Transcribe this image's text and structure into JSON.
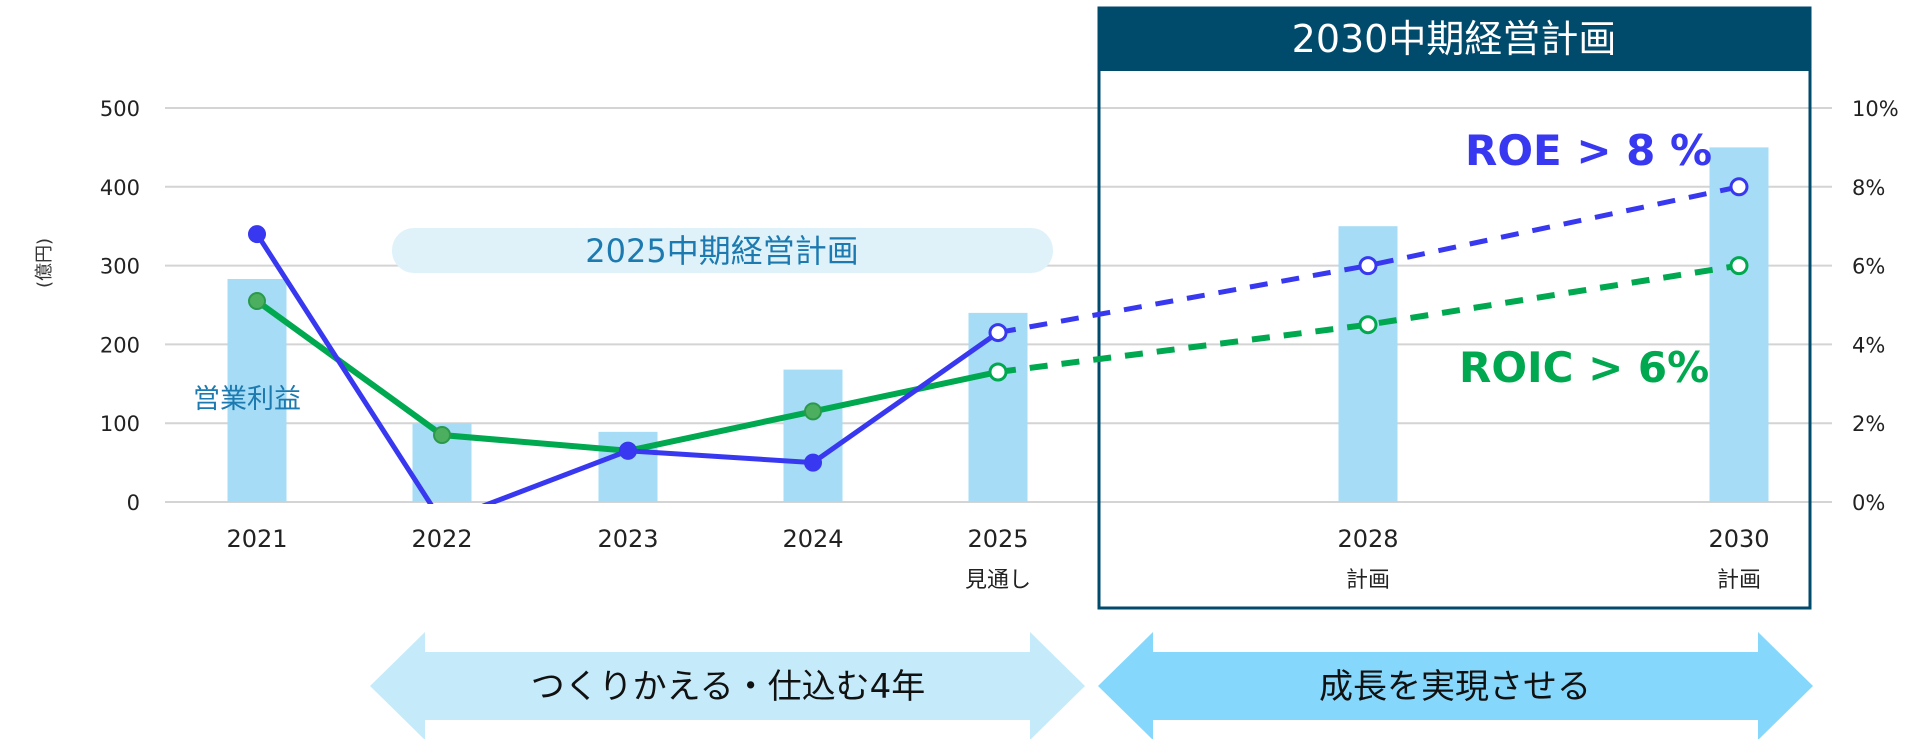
{
  "chart_data": {
    "type": "bar+line",
    "categories": [
      "2021",
      "2022",
      "2023",
      "2024",
      "2025",
      "2028",
      "2030"
    ],
    "category_sublabels": [
      "",
      "",
      "",
      "",
      "見通し",
      "計画",
      "計画"
    ],
    "bar_series": {
      "name": "営業利益",
      "values": [
        283,
        100,
        89,
        168,
        240,
        350,
        450
      ]
    },
    "line_series": [
      {
        "name": "ROE",
        "values": [
          6.8,
          -0.5,
          1.3,
          1.0,
          4.3,
          6.0,
          8.0
        ],
        "color": "#3838f0",
        "projected_from_index": 4
      },
      {
        "name": "ROIC",
        "values": [
          5.1,
          1.7,
          1.3,
          2.3,
          3.3,
          4.5,
          6.0
        ],
        "color": "#00a84f",
        "projected_from_index": 4
      }
    ],
    "y_left": {
      "label": "(億円)",
      "range": [
        0,
        500
      ],
      "ticks": [
        "0",
        "100",
        "200",
        "300",
        "400",
        "500"
      ]
    },
    "y_right": {
      "range": [
        0,
        10
      ],
      "ticks": [
        "0%",
        "2%",
        "4%",
        "6%",
        "8%",
        "10%"
      ]
    },
    "grid": true,
    "bar_color": "#a6dcf5"
  },
  "annotations": {
    "bar_label": "営業利益",
    "plan_2025": "2025中期経営計画",
    "plan_2030": "2030中期経営計画",
    "roe_target": "ROE > 8 %",
    "roic_target": "ROIC > 6%",
    "arrow_left": "つくりかえる・仕込む4年",
    "arrow_right": "成長を実現させる"
  },
  "colors": {
    "header": "#004a6b",
    "pill_bg": "#dff2fa",
    "pill_text": "#1c7ab0",
    "arrow_left": "#c5ebfb",
    "arrow_right": "#85d8fb"
  }
}
